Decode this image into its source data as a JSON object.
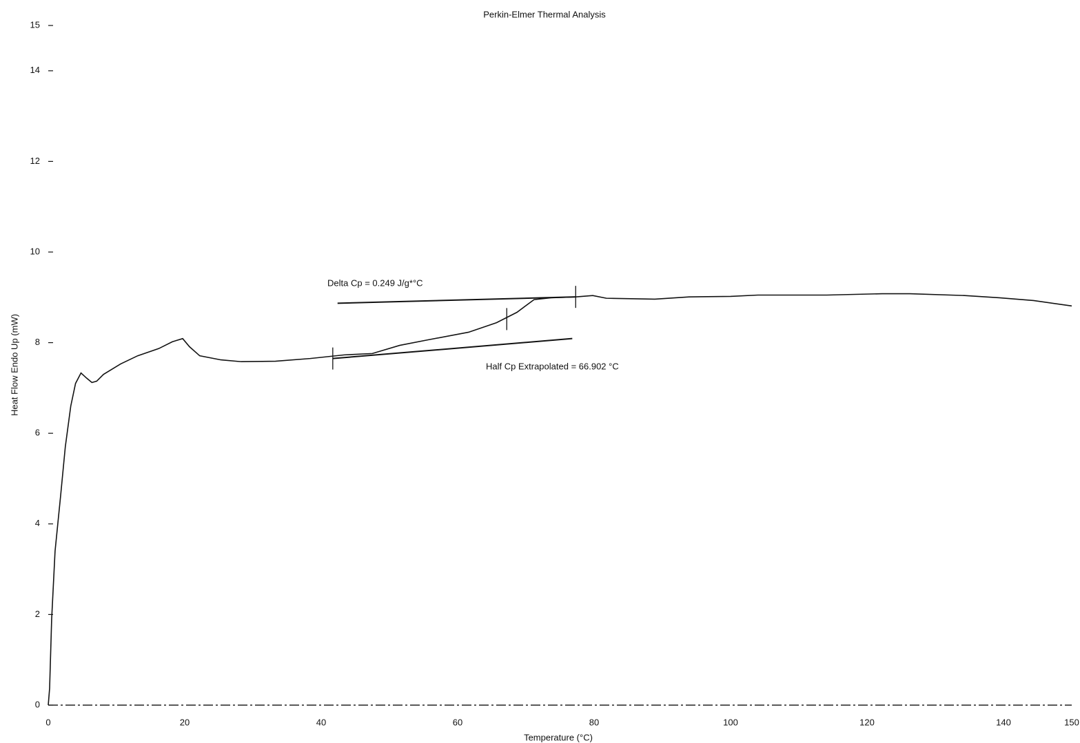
{
  "chart_data": {
    "type": "line",
    "title": "Perkin-Elmer Thermal Analysis",
    "xlabel": "Temperature (°C)",
    "ylabel": "Heat Flow Endo Up (mW)",
    "color": "#111111",
    "x": [
      0,
      0.2,
      0.5,
      1.0,
      1.8,
      2.5,
      3.3,
      4.0,
      4.8,
      5.6,
      6.4,
      7.1,
      8.1,
      10.6,
      13.1,
      16.2,
      18.2,
      19.7,
      20.7,
      22.2,
      25.3,
      28.3,
      33.3,
      38.4,
      43.4,
      47.5,
      51.5,
      55.6,
      61.6,
      65.7,
      68.7,
      71.2,
      73.7,
      77.3,
      79.8,
      81.8,
      88.9,
      93.9,
      100,
      104,
      114.1,
      122.2,
      126.3,
      134.3,
      139.4,
      144.4,
      150
    ],
    "values": [
      0,
      0.37,
      1.9,
      3.4,
      4.6,
      5.7,
      6.6,
      7.1,
      7.33,
      7.22,
      7.12,
      7.15,
      7.3,
      7.53,
      7.71,
      7.87,
      8.02,
      8.09,
      7.91,
      7.71,
      7.62,
      7.58,
      7.59,
      7.65,
      7.73,
      7.76,
      7.94,
      8.06,
      8.23,
      8.44,
      8.67,
      8.95,
      8.99,
      9.01,
      9.04,
      8.98,
      8.96,
      9.01,
      9.02,
      9.05,
      9.05,
      9.08,
      9.08,
      9.04,
      8.99,
      8.93,
      8.81
    ],
    "annotation_lines": [
      {
        "x": [
          42.4,
          77.3
        ],
        "y": [
          8.87,
          9.01
        ]
      },
      {
        "x": [
          41.7,
          76.8
        ],
        "y": [
          7.65,
          8.09
        ]
      }
    ],
    "markers": {
      "x": [
        41.7,
        67.2,
        77.3
      ],
      "y": [
        7.65,
        8.52,
        9.01
      ]
    },
    "annotations": [
      "Delta Cp = 0.249 J/g*°C",
      "Half Cp Extrapolated = 66.902 °C"
    ],
    "xlim": [
      0,
      150
    ],
    "xticks": [
      0,
      20,
      40,
      60,
      80,
      100,
      120,
      140,
      150
    ],
    "ylim": [
      0,
      15
    ],
    "yticks": [
      0,
      2,
      4,
      6,
      8,
      10,
      12,
      14,
      15
    ]
  }
}
